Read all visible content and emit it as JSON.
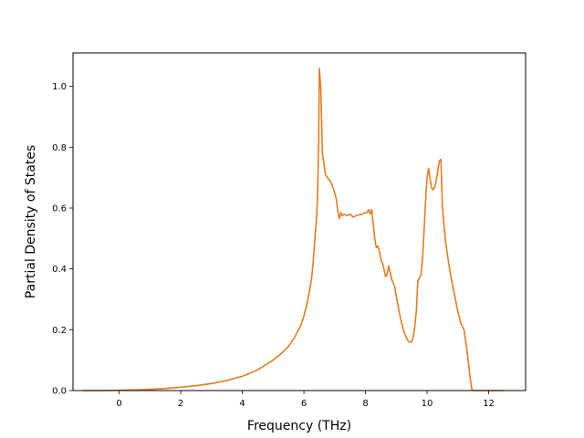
{
  "chart_data": {
    "type": "line",
    "title": "",
    "xlabel": "Frequency (THz)",
    "ylabel": "Partial Density of States",
    "xlim": [
      -1.5,
      13.2
    ],
    "ylim": [
      0.0,
      1.11
    ],
    "xticks": [
      0,
      2,
      4,
      6,
      8,
      10,
      12
    ],
    "yticks": [
      0.0,
      0.2,
      0.4,
      0.6,
      0.8,
      1.0
    ],
    "xtick_labels": [
      "0",
      "2",
      "4",
      "6",
      "8",
      "10",
      "12"
    ],
    "ytick_labels": [
      "0.0",
      "0.2",
      "0.4",
      "0.6",
      "0.8",
      "1.0"
    ],
    "grid": false,
    "series": [
      {
        "color": "#e37e1f",
        "x": [
          -1.2,
          -0.5,
          0.0,
          0.5,
          1.0,
          1.5,
          2.0,
          2.5,
          3.0,
          3.5,
          4.0,
          4.5,
          5.0,
          5.3,
          5.5,
          5.7,
          5.9,
          6.0,
          6.1,
          6.2,
          6.25,
          6.3,
          6.35,
          6.38,
          6.42,
          6.45,
          6.48,
          6.5,
          6.55,
          6.6,
          6.7,
          6.8,
          6.85,
          6.9,
          6.95,
          7.0,
          7.05,
          7.1,
          7.15,
          7.2,
          7.25,
          7.3,
          7.4,
          7.5,
          7.6,
          7.7,
          7.8,
          7.9,
          8.0,
          8.05,
          8.1,
          8.15,
          8.2,
          8.25,
          8.3,
          8.35,
          8.4,
          8.45,
          8.5,
          8.55,
          8.6,
          8.65,
          8.7,
          8.75,
          8.8,
          8.85,
          8.9,
          8.95,
          9.0,
          9.1,
          9.2,
          9.3,
          9.4,
          9.5,
          9.55,
          9.6,
          9.65,
          9.7,
          9.75,
          9.8,
          9.85,
          9.9,
          9.95,
          10.0,
          10.05,
          10.1,
          10.15,
          10.2,
          10.25,
          10.3,
          10.35,
          10.4,
          10.45,
          10.5,
          10.6,
          10.7,
          10.8,
          10.9,
          11.0,
          11.1,
          11.2,
          11.3,
          11.4,
          11.45,
          11.5,
          11.7,
          12.0,
          12.5
        ],
        "values": [
          0.0,
          0.0,
          0.001,
          0.002,
          0.004,
          0.007,
          0.011,
          0.016,
          0.023,
          0.033,
          0.047,
          0.068,
          0.1,
          0.125,
          0.145,
          0.175,
          0.215,
          0.245,
          0.285,
          0.34,
          0.37,
          0.42,
          0.49,
          0.53,
          0.58,
          0.67,
          0.82,
          1.06,
          0.99,
          0.78,
          0.71,
          0.695,
          0.69,
          0.68,
          0.665,
          0.65,
          0.63,
          0.59,
          0.565,
          0.585,
          0.575,
          0.58,
          0.575,
          0.58,
          0.57,
          0.575,
          0.578,
          0.58,
          0.585,
          0.585,
          0.595,
          0.58,
          0.595,
          0.55,
          0.5,
          0.47,
          0.475,
          0.46,
          0.43,
          0.42,
          0.4,
          0.375,
          0.38,
          0.41,
          0.39,
          0.365,
          0.355,
          0.34,
          0.31,
          0.255,
          0.21,
          0.18,
          0.16,
          0.16,
          0.175,
          0.21,
          0.26,
          0.36,
          0.37,
          0.38,
          0.43,
          0.52,
          0.62,
          0.7,
          0.73,
          0.695,
          0.665,
          0.66,
          0.67,
          0.69,
          0.725,
          0.755,
          0.76,
          0.6,
          0.49,
          0.42,
          0.36,
          0.31,
          0.26,
          0.22,
          0.2,
          0.13,
          0.04,
          0.005,
          0.0,
          0.0,
          0.0,
          0.0
        ]
      }
    ]
  }
}
